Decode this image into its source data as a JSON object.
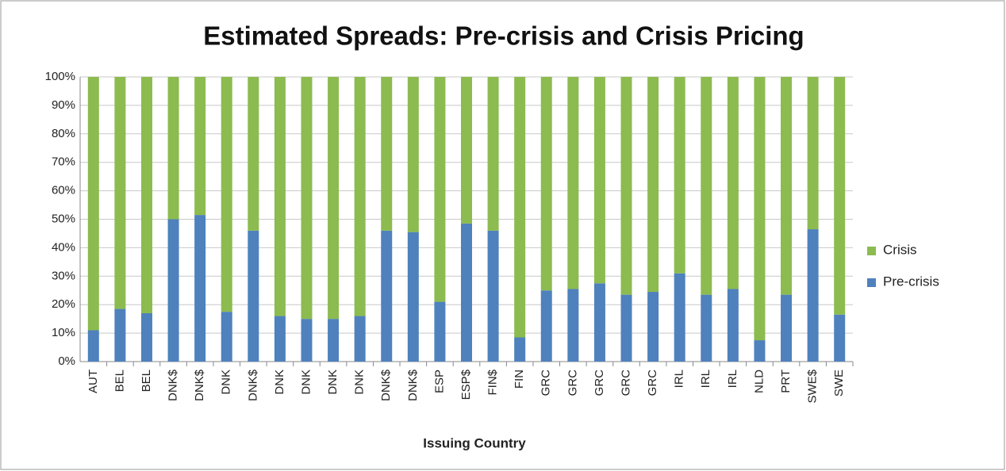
{
  "chart_data": {
    "type": "stacked_bar",
    "title": "Estimated Spreads: Pre-crisis and Crisis Pricing",
    "x_label": "Issuing Country",
    "categories": [
      "AUT",
      "BEL",
      "BEL",
      "DNK$",
      "DNK$",
      "DNK",
      "DNK$",
      "DNK",
      "DNK",
      "DNK",
      "DNK",
      "DNK$",
      "DNK$",
      "ESP",
      "ESP$",
      "FIN$",
      "FIN",
      "GRC",
      "GRC",
      "GRC",
      "GRC",
      "GRC",
      "IRL",
      "IRL",
      "IRL",
      "NLD",
      "PRT",
      "SWE$",
      "SWE"
    ],
    "series": [
      {
        "name": "Pre-crisis",
        "color": "#4f81bd",
        "values": [
          11,
          18.5,
          17,
          50,
          51.5,
          17.5,
          46,
          16,
          15,
          15,
          16,
          46,
          45.5,
          21,
          48.5,
          46,
          8.5,
          25,
          25.5,
          27.5,
          23.5,
          24.5,
          31,
          23.5,
          25.5,
          7.5,
          23.5,
          46.5,
          16.5
        ]
      },
      {
        "name": "Crisis",
        "color": "#8cbb4f",
        "values": [
          89,
          81.5,
          83,
          50,
          48.5,
          82.5,
          54,
          84,
          85,
          85,
          84,
          54,
          54.5,
          79,
          51.5,
          54,
          91.5,
          75,
          74.5,
          72.5,
          76.5,
          75.5,
          69,
          76.5,
          74.5,
          92.5,
          76.5,
          53.5,
          83.5
        ]
      }
    ],
    "ylim": [
      0,
      100
    ],
    "yticks": [
      {
        "value": 0,
        "label": "0%"
      },
      {
        "value": 10,
        "label": "10%"
      },
      {
        "value": 20,
        "label": "20%"
      },
      {
        "value": 30,
        "label": "30%"
      },
      {
        "value": 40,
        "label": "40%"
      },
      {
        "value": 50,
        "label": "50%"
      },
      {
        "value": 60,
        "label": "60%"
      },
      {
        "value": 70,
        "label": "70%"
      },
      {
        "value": 80,
        "label": "80%"
      },
      {
        "value": 90,
        "label": "90%"
      },
      {
        "value": 100,
        "label": "100%"
      }
    ],
    "grid": true,
    "legend": "right"
  }
}
